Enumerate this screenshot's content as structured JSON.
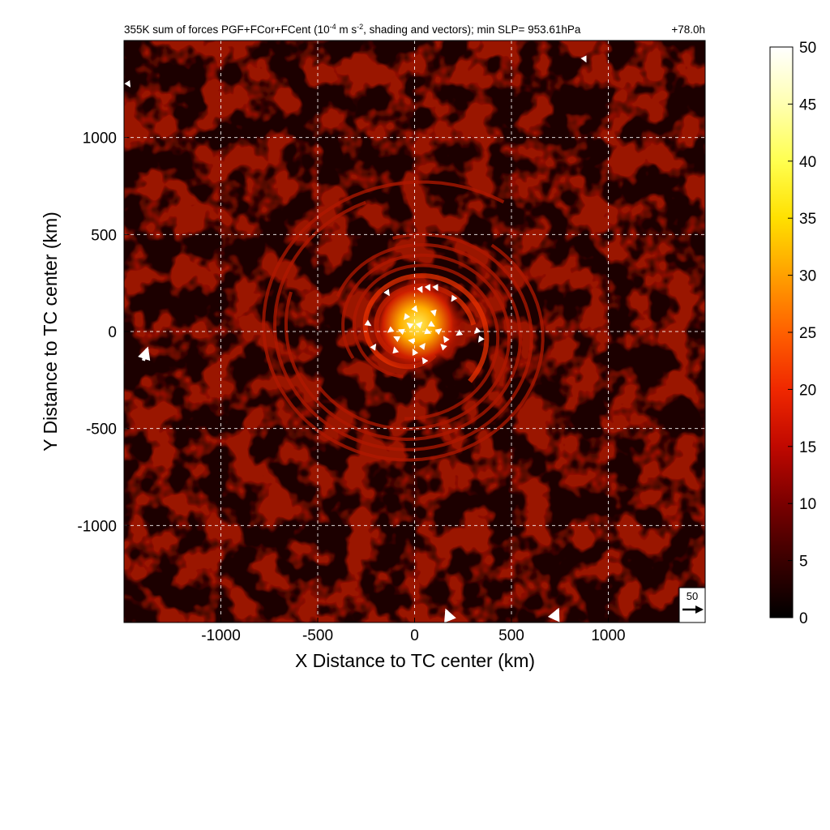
{
  "chart_data": {
    "type": "heatmap",
    "title_main": "355K sum of forces PGF+FCor+FCent (10",
    "title_exp1": "-4",
    "title_mid": " m s",
    "title_exp2": "-2",
    "title_tail": ", shading and vectors); min SLP= 953.61hPa",
    "time_label": "+78.0h",
    "xlabel": "X Distance to TC center (km)",
    "ylabel": "Y Distance to TC center (km)",
    "xlim": [
      -1500,
      1500
    ],
    "ylim": [
      -1500,
      1500
    ],
    "xticks": [
      -1000,
      -500,
      0,
      500,
      1000
    ],
    "yticks": [
      -1000,
      -500,
      0,
      500,
      1000
    ],
    "grid": true,
    "grid_style": "dashed-white",
    "colorbar": {
      "min": 0,
      "max": 50,
      "ticks": [
        0,
        5,
        10,
        15,
        20,
        25,
        30,
        35,
        40,
        45,
        50
      ],
      "colormap": [
        "#000000",
        "#5a0000",
        "#a01000",
        "#e02000",
        "#ff5a00",
        "#ff9a00",
        "#ffd500",
        "#ffff30",
        "#ffffa0",
        "#ffffff"
      ]
    },
    "reference_vector": {
      "label": "50",
      "magnitude": 50
    },
    "field_description_values": {
      "background_level": 6,
      "spiral_band_level": 12,
      "core_level": 32
    },
    "vectors": [
      {
        "x": -20,
        "y": 30,
        "u": -8,
        "v": 6
      },
      {
        "x": 20,
        "y": 30,
        "u": 8,
        "v": 8
      },
      {
        "x": 60,
        "y": 0,
        "u": 10,
        "v": -4
      },
      {
        "x": -60,
        "y": 0,
        "u": -10,
        "v": 4
      },
      {
        "x": 0,
        "y": -50,
        "u": -14,
        "v": 2
      },
      {
        "x": -80,
        "y": -40,
        "u": -12,
        "v": 6
      },
      {
        "x": 80,
        "y": 40,
        "u": 10,
        "v": -6
      },
      {
        "x": -40,
        "y": 80,
        "u": -6,
        "v": -8
      },
      {
        "x": 40,
        "y": -80,
        "u": 6,
        "v": 8
      },
      {
        "x": 120,
        "y": 0,
        "u": 8,
        "v": 6
      },
      {
        "x": -120,
        "y": 10,
        "u": -8,
        "v": -6
      },
      {
        "x": 0,
        "y": 120,
        "u": 6,
        "v": -8
      },
      {
        "x": 0,
        "y": -110,
        "u": -4,
        "v": 8
      },
      {
        "x": 100,
        "y": 100,
        "u": 2,
        "v": -8
      },
      {
        "x": -100,
        "y": -100,
        "u": -2,
        "v": 8
      },
      {
        "x": 150,
        "y": -80,
        "u": -6,
        "v": 6
      },
      {
        "x": 160,
        "y": -40,
        "u": -4,
        "v": 6
      },
      {
        "x": 30,
        "y": 220,
        "u": 4,
        "v": -8
      },
      {
        "x": 70,
        "y": 230,
        "u": 4,
        "v": -8
      },
      {
        "x": 110,
        "y": 230,
        "u": 4,
        "v": -8
      },
      {
        "x": -140,
        "y": 200,
        "u": 4,
        "v": -6
      },
      {
        "x": 200,
        "y": 170,
        "u": -4,
        "v": -6
      },
      {
        "x": -240,
        "y": 40,
        "u": 6,
        "v": -4
      },
      {
        "x": 230,
        "y": -10,
        "u": -6,
        "v": -4
      },
      {
        "x": 320,
        "y": 0,
        "u": -4,
        "v": -4
      },
      {
        "x": 340,
        "y": -40,
        "u": -4,
        "v": -6
      },
      {
        "x": -210,
        "y": -80,
        "u": 4,
        "v": 6
      },
      {
        "x": 50,
        "y": -150,
        "u": -4,
        "v": 6
      },
      {
        "x": -1400,
        "y": -150,
        "u": 10,
        "v": 30
      },
      {
        "x": 180,
        "y": -1480,
        "u": -8,
        "v": 20
      },
      {
        "x": 720,
        "y": -1480,
        "u": 10,
        "v": 22
      },
      {
        "x": -1480,
        "y": 1280,
        "u": 5,
        "v": -8
      },
      {
        "x": 880,
        "y": 1400,
        "u": 2,
        "v": -4
      }
    ]
  }
}
